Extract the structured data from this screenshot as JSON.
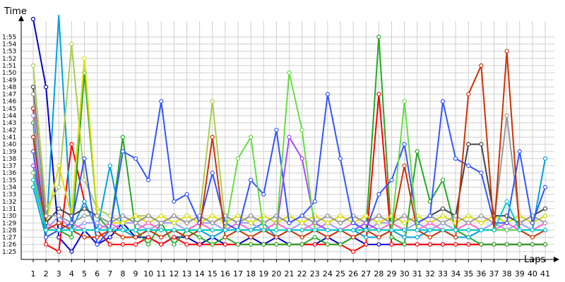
{
  "chart_data": {
    "type": "line",
    "ylabel": "Time",
    "xlabel": "Laps",
    "x": [
      1,
      2,
      3,
      4,
      5,
      6,
      7,
      8,
      9,
      10,
      11,
      12,
      13,
      14,
      15,
      16,
      17,
      18,
      19,
      20,
      21,
      22,
      23,
      24,
      25,
      26,
      27,
      28,
      29,
      30,
      31,
      32,
      33,
      34,
      35,
      36,
      37,
      38,
      39,
      40,
      41
    ],
    "y_ticks": [
      "1:25",
      "1:26",
      "1:27",
      "1:28",
      "1:29",
      "1:30",
      "1:31",
      "1:32",
      "1:33",
      "1:34",
      "1:35",
      "1:36",
      "1:37",
      "1:38",
      "1:39",
      "1:40",
      "1:41",
      "1:42",
      "1:43",
      "1:44",
      "1:45",
      "1:46",
      "1:47",
      "1:48",
      "1:49",
      "1:50",
      "1:51",
      "1:52",
      "1:53",
      "1:54",
      "1:55"
    ],
    "ylim": [
      84,
      117
    ],
    "grid": true,
    "series": [
      {
        "color": "#0000cc",
        "values": [
          117.5,
          108,
          87,
          85,
          88,
          86,
          87,
          89,
          87,
          87,
          86,
          87,
          87,
          86,
          87,
          86,
          86,
          87,
          86,
          87,
          86,
          86,
          86,
          87,
          86,
          87,
          86,
          86,
          86,
          86,
          86,
          86,
          86,
          86,
          86,
          86,
          86,
          86,
          86,
          86,
          86
        ]
      },
      {
        "color": "#ff0000",
        "values": [
          105,
          86,
          85,
          100,
          92,
          88,
          86,
          86,
          86,
          87,
          86,
          87,
          86,
          86,
          86,
          86,
          86,
          86,
          86,
          86,
          86,
          86,
          86,
          86,
          86,
          85,
          86,
          107,
          86,
          86,
          86,
          86,
          86,
          86,
          86,
          86,
          86,
          86,
          86,
          86,
          86
        ]
      },
      {
        "color": "#22aa22",
        "values": [
          103,
          87,
          88,
          87,
          110,
          90,
          88,
          101,
          88,
          86,
          89,
          86,
          88,
          87,
          86,
          87,
          86,
          86,
          86,
          86,
          86,
          86,
          87,
          86,
          86,
          87,
          88,
          115,
          87,
          86,
          99,
          92,
          95,
          88,
          87,
          86,
          86,
          86,
          86,
          86,
          86
        ]
      },
      {
        "color": "#00a0e0",
        "values": [
          94,
          87,
          118,
          88,
          92,
          88,
          97,
          88,
          87,
          88,
          87,
          88,
          87,
          88,
          87,
          88,
          88,
          88,
          89,
          87,
          88,
          88,
          88,
          87,
          88,
          88,
          87,
          87,
          88,
          87,
          87,
          88,
          88,
          87,
          87,
          88,
          88,
          88,
          88,
          88,
          98
        ]
      },
      {
        "color": "#9999ff",
        "values": [
          104,
          88,
          90,
          88,
          89,
          89,
          88,
          89,
          89,
          88,
          89,
          89,
          88,
          89,
          89,
          88,
          89,
          89,
          88,
          89,
          88,
          89,
          88,
          89,
          88,
          89,
          88,
          89,
          89,
          88,
          89,
          88,
          89,
          88,
          89,
          88,
          89,
          88,
          89,
          88,
          89
        ]
      },
      {
        "color": "#aacc55",
        "values": [
          111,
          91,
          94,
          114,
          95,
          91,
          90,
          89,
          90,
          90,
          89,
          90,
          89,
          90,
          106,
          89,
          90,
          89,
          90,
          89,
          90,
          89,
          90,
          89,
          90,
          89,
          90,
          89,
          90,
          89,
          90,
          89,
          90,
          89,
          90,
          89,
          90,
          89,
          90,
          89,
          90
        ]
      },
      {
        "color": "#dddd00",
        "values": [
          108,
          89,
          97,
          90,
          112,
          90,
          89,
          89,
          90,
          89,
          90,
          89,
          90,
          89,
          90,
          89,
          90,
          89,
          90,
          89,
          90,
          89,
          90,
          89,
          90,
          89,
          90,
          89,
          90,
          89,
          90,
          89,
          90,
          89,
          90,
          89,
          90,
          89,
          90,
          89,
          90
        ]
      },
      {
        "color": "#ff66cc",
        "values": [
          96,
          89,
          88,
          89,
          88,
          88,
          89,
          88,
          88,
          89,
          88,
          88,
          88,
          89,
          88,
          88,
          89,
          88,
          88,
          89,
          88,
          88,
          89,
          88,
          88,
          89,
          88,
          88,
          89,
          88,
          88,
          89,
          88,
          88,
          89,
          88,
          88,
          89,
          88,
          88,
          89
        ]
      },
      {
        "color": "#444444",
        "values": [
          108,
          89,
          91,
          90,
          91,
          90,
          89,
          90,
          89,
          90,
          89,
          90,
          89,
          90,
          89,
          90,
          89,
          90,
          89,
          90,
          89,
          90,
          89,
          90,
          89,
          90,
          89,
          90,
          89,
          90,
          89,
          90,
          91,
          90,
          100,
          100,
          90,
          90,
          89,
          90,
          91
        ]
      },
      {
        "color": "#999999",
        "values": [
          107,
          90,
          90,
          89,
          90,
          90,
          89,
          90,
          89,
          90,
          89,
          90,
          89,
          90,
          89,
          90,
          89,
          90,
          89,
          90,
          89,
          90,
          89,
          90,
          89,
          90,
          89,
          90,
          89,
          90,
          89,
          90,
          89,
          90,
          89,
          90,
          89,
          104,
          89,
          90,
          89
        ]
      },
      {
        "color": "#3355ff",
        "values": [
          99,
          87,
          88,
          89,
          98,
          86,
          88,
          99,
          98,
          95,
          106,
          92,
          93,
          89,
          96,
          89,
          88,
          95,
          93,
          102,
          89,
          90,
          92,
          107,
          98,
          89,
          88,
          93,
          95,
          100,
          89,
          90,
          106,
          98,
          97,
          96,
          89,
          89,
          99,
          89,
          94
        ]
      },
      {
        "color": "#cc3300",
        "values": [
          101,
          88,
          89,
          88,
          87,
          87,
          88,
          87,
          87,
          88,
          87,
          88,
          87,
          88,
          101,
          87,
          88,
          87,
          88,
          87,
          88,
          87,
          88,
          87,
          88,
          87,
          88,
          87,
          88,
          97,
          88,
          87,
          88,
          87,
          107,
          111,
          88,
          113,
          88,
          87,
          88
        ]
      },
      {
        "color": "#aa44ff",
        "values": [
          97,
          88,
          88,
          88,
          88,
          88,
          88,
          88,
          88,
          88,
          88,
          88,
          88,
          88,
          88,
          88,
          88,
          88,
          88,
          88,
          101,
          98,
          89,
          88,
          88,
          88,
          89,
          88,
          88,
          88,
          88,
          88,
          88,
          88,
          88,
          88,
          88,
          88,
          88,
          88,
          88
        ]
      },
      {
        "color": "#66dd44",
        "values": [
          96,
          88,
          88,
          88,
          88,
          88,
          88,
          88,
          88,
          88,
          88,
          88,
          88,
          88,
          88,
          88,
          98,
          101,
          88,
          88,
          110,
          102,
          88,
          88,
          88,
          88,
          88,
          88,
          88,
          106,
          88,
          88,
          88,
          88,
          88,
          88,
          88,
          88,
          88,
          88,
          88
        ]
      },
      {
        "color": "#00cccc",
        "values": [
          95,
          88,
          88,
          88,
          88,
          88,
          88,
          88,
          88,
          88,
          88,
          88,
          88,
          88,
          88,
          88,
          88,
          88,
          88,
          88,
          88,
          88,
          88,
          88,
          88,
          88,
          88,
          88,
          88,
          88,
          88,
          88,
          88,
          88,
          88,
          88,
          88,
          92,
          88,
          88,
          88
        ]
      }
    ]
  }
}
